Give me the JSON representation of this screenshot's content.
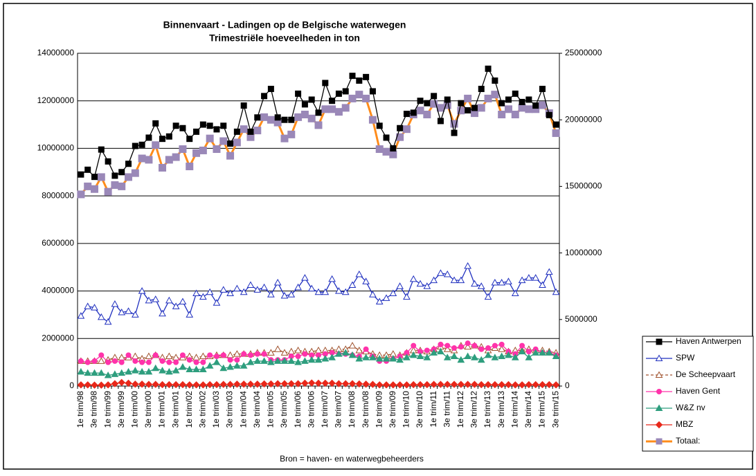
{
  "chart_data": {
    "type": "line",
    "title": "Binnenvaart - Ladingen op de Belgische waterwegen",
    "subtitle": "Trimestriële hoeveelheden in ton",
    "source": "Bron = haven- en waterwegbeheerders",
    "categories": [
      "1e trim/98",
      null,
      "3e trim/98",
      null,
      "1e trim/99",
      null,
      "3e trim/99",
      null,
      "1e trim/00",
      null,
      "3e trim/00",
      null,
      "1e trim/01",
      null,
      "3e trim/01",
      null,
      "1e trim/02",
      null,
      "3e trim/02",
      null,
      "1e trim/03",
      null,
      "3e trim/03",
      null,
      "1e trim/04",
      null,
      "3e trim/04",
      null,
      "1e trim/05",
      null,
      "3e trim/05",
      null,
      "1e trim/06",
      null,
      "3e trim/06",
      null,
      "1e trim/07",
      null,
      "3e trim/07",
      null,
      "1e trim/08",
      null,
      "3e trim/08",
      null,
      "1e trim/09",
      null,
      "3e trim/09",
      null,
      "1e trim/10",
      null,
      "3e trim/10",
      null,
      "1e trim/11",
      null,
      "3e trim/11",
      null,
      "1e trim/12",
      null,
      "3e trim/12",
      null,
      "1e trim/13",
      null,
      "3e trim/13",
      null,
      "1e trim/14",
      null,
      "3e trim/14",
      null,
      "1e trim/15",
      null,
      "3e trim/15"
    ],
    "ylim": [
      0,
      14000000
    ],
    "yticks": [
      0,
      2000000,
      4000000,
      6000000,
      8000000,
      10000000,
      12000000,
      14000000
    ],
    "y2lim": [
      0,
      25000000
    ],
    "y2ticks": [
      0,
      5000000,
      10000000,
      15000000,
      20000000,
      25000000
    ],
    "grid": true,
    "legend": "right",
    "series": [
      {
        "name": "Haven Antwerpen",
        "color": "#000000",
        "marker": "square",
        "marker_color": "#000000",
        "open": false,
        "values": [
          8900000,
          9100000,
          8800000,
          9950000,
          9450000,
          8850000,
          9000000,
          9350000,
          10100000,
          10150000,
          10450000,
          11050000,
          10400000,
          10500000,
          10950000,
          10850000,
          10400000,
          10700000,
          11000000,
          10950000,
          10800000,
          10950000,
          10200000,
          10700000,
          11800000,
          10700000,
          11300000,
          12200000,
          12500000,
          11300000,
          11200000,
          11200000,
          12300000,
          11850000,
          12050000,
          11500000,
          12750000,
          12000000,
          12300000,
          12400000,
          13050000,
          12850000,
          13000000,
          12400000,
          10950000,
          10450000,
          10000000,
          10850000,
          11450000,
          11500000,
          12000000,
          11900000,
          12200000,
          11150000,
          12050000,
          10650000,
          11900000,
          11600000,
          11700000,
          12500000,
          13350000,
          12850000,
          11900000,
          12050000,
          12300000,
          11950000,
          12050000,
          11800000,
          12500000,
          11400000,
          11000000
        ]
      },
      {
        "name": "SPW",
        "color": "#1f2fbf",
        "marker": "triangle",
        "marker_color": "#1f2fbf",
        "open": true,
        "values": [
          2950000,
          3350000,
          3300000,
          2900000,
          2700000,
          3450000,
          3100000,
          3150000,
          3000000,
          4000000,
          3600000,
          3650000,
          3050000,
          3600000,
          3350000,
          3550000,
          3000000,
          3900000,
          3750000,
          3950000,
          3500000,
          4050000,
          3900000,
          4100000,
          3950000,
          4250000,
          4050000,
          4150000,
          3850000,
          4350000,
          3800000,
          3850000,
          4150000,
          4550000,
          4100000,
          3950000,
          3950000,
          4500000,
          4000000,
          3950000,
          4250000,
          4700000,
          4400000,
          3850000,
          3550000,
          3700000,
          3900000,
          4200000,
          3750000,
          4500000,
          4300000,
          4200000,
          4450000,
          4750000,
          4700000,
          4450000,
          4450000,
          5050000,
          4300000,
          4200000,
          3750000,
          4350000,
          4350000,
          4400000,
          3900000,
          4450000,
          4550000,
          4550000,
          4250000,
          4800000,
          3950000
        ]
      },
      {
        "name": "De Scheepvaart",
        "color": "#a0522d",
        "marker": "triangle",
        "marker_color": "#a0522d",
        "open": true,
        "dashed": true,
        "values": [
          1050000,
          1050000,
          1050000,
          1050000,
          1100000,
          1200000,
          1200000,
          1200000,
          1250000,
          1150000,
          1250000,
          1300000,
          1200000,
          1250000,
          1200000,
          1200000,
          1250000,
          1200000,
          1250000,
          1250000,
          1300000,
          1300000,
          1300000,
          1350000,
          1350000,
          1350000,
          1400000,
          1400000,
          1400000,
          1550000,
          1400000,
          1450000,
          1500000,
          1450000,
          1450000,
          1500000,
          1500000,
          1500000,
          1550000,
          1550000,
          1700000,
          1500000,
          1450000,
          1350000,
          1300000,
          1300000,
          1350000,
          1300000,
          1400000,
          1500000,
          1500000,
          1450000,
          1550000,
          1650000,
          1550000,
          1500000,
          1700000,
          1650000,
          1700000,
          1650000,
          1500000,
          1600000,
          1550000,
          1450000,
          1500000,
          1500000,
          1550000,
          1500000,
          1500000,
          1450000,
          1400000
        ]
      },
      {
        "name": "Haven Gent",
        "color": "#ff33aa",
        "marker": "circle",
        "marker_color": "#ff33aa",
        "open": false,
        "values": [
          1050000,
          1000000,
          1050000,
          1300000,
          1000000,
          1050000,
          1000000,
          1300000,
          1050000,
          1000000,
          1000000,
          1300000,
          1050000,
          1000000,
          1000000,
          1300000,
          1100000,
          1000000,
          1000000,
          1300000,
          1250000,
          1300000,
          1100000,
          1100000,
          1350000,
          1300000,
          1350000,
          1350000,
          1100000,
          1100000,
          1100000,
          1250000,
          1250000,
          1350000,
          1300000,
          1300000,
          1350000,
          1400000,
          1350000,
          1350000,
          1300000,
          1250000,
          1550000,
          1250000,
          1050000,
          1050000,
          1150000,
          1250000,
          1400000,
          1700000,
          1450000,
          1500000,
          1550000,
          1750000,
          1700000,
          1600000,
          1650000,
          1800000,
          1700000,
          1550000,
          1600000,
          1700000,
          1750000,
          1450000,
          1350000,
          1700000,
          1450000,
          1550000,
          1400000,
          1400000,
          1300000
        ]
      },
      {
        "name": "W&Z nv",
        "color": "#2e9e7e",
        "marker": "triangle",
        "marker_color": "#2e9e7e",
        "open": false,
        "values": [
          600000,
          550000,
          550000,
          550000,
          450000,
          500000,
          550000,
          600000,
          650000,
          600000,
          600000,
          750000,
          650000,
          600000,
          650000,
          800000,
          700000,
          700000,
          700000,
          850000,
          1000000,
          750000,
          800000,
          850000,
          850000,
          1000000,
          1050000,
          1050000,
          1000000,
          1050000,
          1050000,
          1050000,
          1000000,
          1050000,
          1100000,
          1100000,
          1150000,
          1200000,
          1350000,
          1400000,
          1300000,
          1150000,
          1200000,
          1200000,
          1150000,
          1150000,
          1150000,
          1100000,
          1200000,
          1300000,
          1250000,
          1200000,
          1400000,
          1450000,
          1200000,
          1250000,
          1100000,
          1250000,
          1200000,
          1100000,
          1300000,
          1200000,
          1250000,
          1300000,
          1200000,
          1450000,
          1200000,
          1400000,
          1400000,
          1400000,
          1250000
        ]
      },
      {
        "name": "MBZ",
        "color": "#e8281a",
        "marker": "diamond",
        "marker_color": "#e8281a",
        "open": false,
        "values": [
          50000,
          50000,
          40000,
          40000,
          50000,
          100000,
          150000,
          120000,
          80000,
          80000,
          70000,
          70000,
          60000,
          60000,
          60000,
          60000,
          50000,
          50000,
          50000,
          60000,
          60000,
          70000,
          70000,
          80000,
          80000,
          80000,
          80000,
          90000,
          90000,
          100000,
          100000,
          100000,
          100000,
          120000,
          130000,
          120000,
          120000,
          120000,
          100000,
          100000,
          100000,
          90000,
          80000,
          70000,
          50000,
          50000,
          50000,
          50000,
          50000,
          60000,
          60000,
          60000,
          70000,
          70000,
          70000,
          70000,
          70000,
          70000,
          70000,
          60000,
          60000,
          60000,
          60000,
          60000,
          50000,
          50000,
          60000,
          60000,
          60000,
          60000,
          50000
        ]
      },
      {
        "name": "Totaal:",
        "color": "#ff8c1a",
        "marker": "square",
        "marker_color": "#9a88b8",
        "open": false,
        "axis": "y2",
        "values": [
          14400000,
          15000000,
          14800000,
          15700000,
          14600000,
          15100000,
          15000000,
          15700000,
          16000000,
          17100000,
          17000000,
          18100000,
          16400000,
          17000000,
          17200000,
          17800000,
          16500000,
          17500000,
          17700000,
          18600000,
          17800000,
          18400000,
          17300000,
          18300000,
          19300000,
          18700000,
          19200000,
          20200000,
          20000000,
          19800000,
          18600000,
          18900000,
          20200000,
          20400000,
          20100000,
          19600000,
          20800000,
          20800000,
          20600000,
          20900000,
          21600000,
          21900000,
          21600000,
          20000000,
          17800000,
          17600000,
          17400000,
          18700000,
          19300000,
          20400000,
          20700000,
          20400000,
          21200000,
          20900000,
          21100000,
          19700000,
          20700000,
          21600000,
          20500000,
          20900000,
          21600000,
          21900000,
          20400000,
          20800000,
          20400000,
          20900000,
          20800000,
          20800000,
          21100000,
          20500000,
          19000000
        ]
      }
    ]
  }
}
